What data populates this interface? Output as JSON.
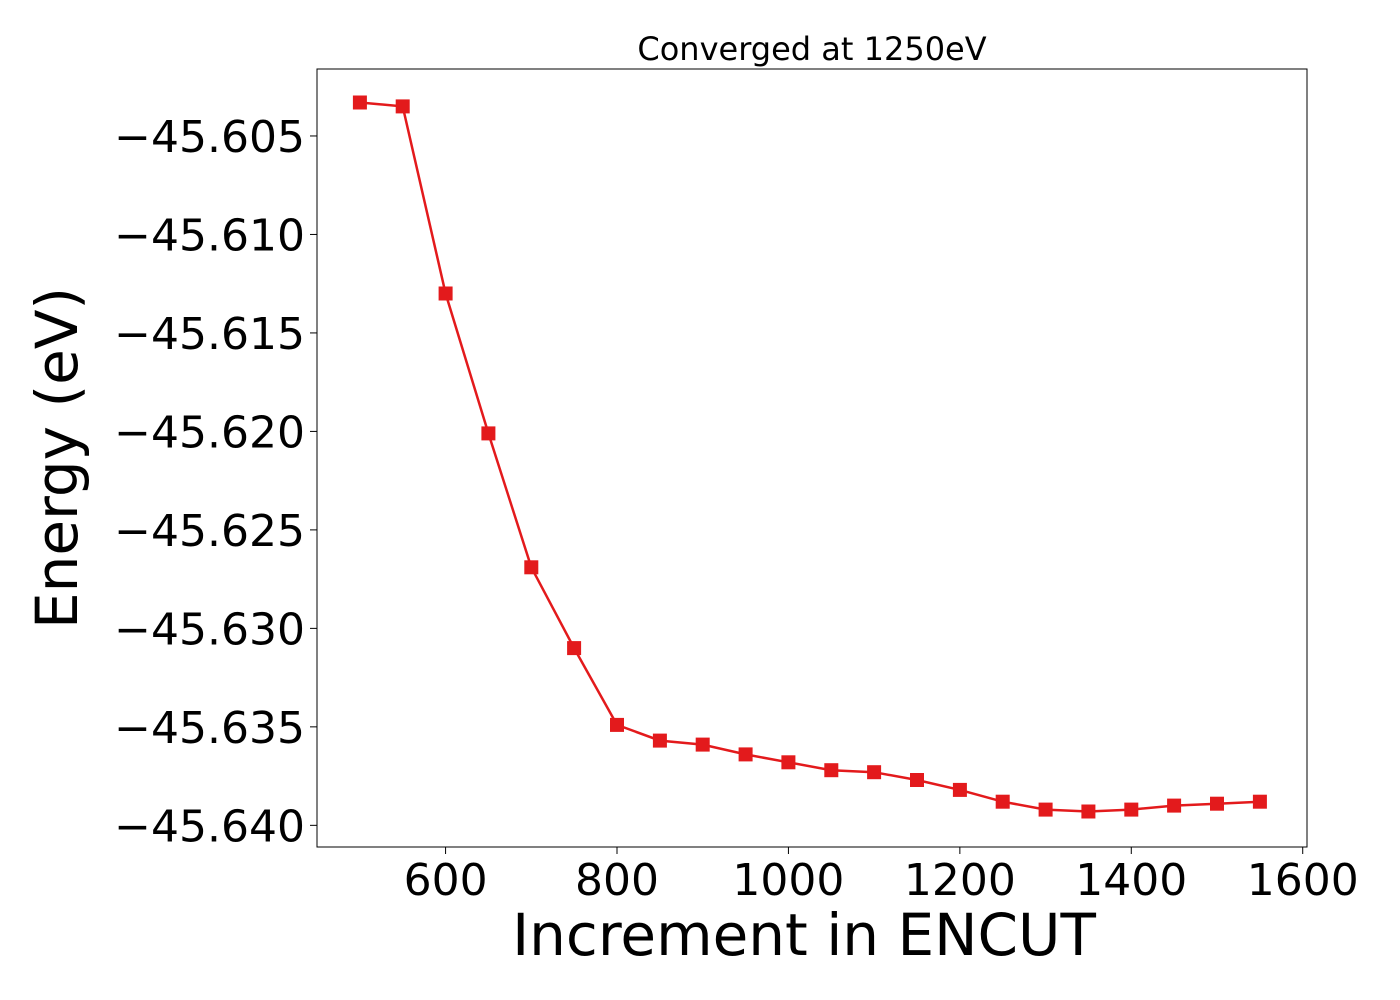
{
  "chart_data": {
    "type": "line",
    "title": "Converged at 1250eV",
    "xlabel": "Increment in ENCUT",
    "ylabel": "Energy (eV)",
    "xlim": [
      450,
      1605
    ],
    "ylim": [
      -45.6411,
      -45.6016
    ],
    "x_ticks": [
      600,
      800,
      1000,
      1200,
      1400,
      1600
    ],
    "x_tick_labels": [
      "600",
      "800",
      "1000",
      "1200",
      "1400",
      "1600"
    ],
    "y_ticks": [
      -45.605,
      -45.61,
      -45.615,
      -45.62,
      -45.625,
      -45.63,
      -45.635,
      -45.64
    ],
    "y_tick_labels": [
      "−45.605",
      "−45.610",
      "−45.615",
      "−45.620",
      "−45.625",
      "−45.630",
      "−45.635",
      "−45.640"
    ],
    "grid": false,
    "series": [
      {
        "color": "#e31a1c",
        "marker": "square",
        "x": [
          500,
          550,
          600,
          650,
          700,
          750,
          800,
          850,
          900,
          950,
          1000,
          1050,
          1100,
          1150,
          1200,
          1250,
          1300,
          1350,
          1400,
          1450,
          1500,
          1550
        ],
        "y": [
          -45.6033,
          -45.6035,
          -45.613,
          -45.6201,
          -45.6269,
          -45.631,
          -45.6349,
          -45.6357,
          -45.6359,
          -45.6364,
          -45.6368,
          -45.6372,
          -45.6373,
          -45.6377,
          -45.6382,
          -45.6388,
          -45.6392,
          -45.6393,
          -45.6392,
          -45.639,
          -45.6389,
          -45.6388
        ]
      }
    ]
  }
}
